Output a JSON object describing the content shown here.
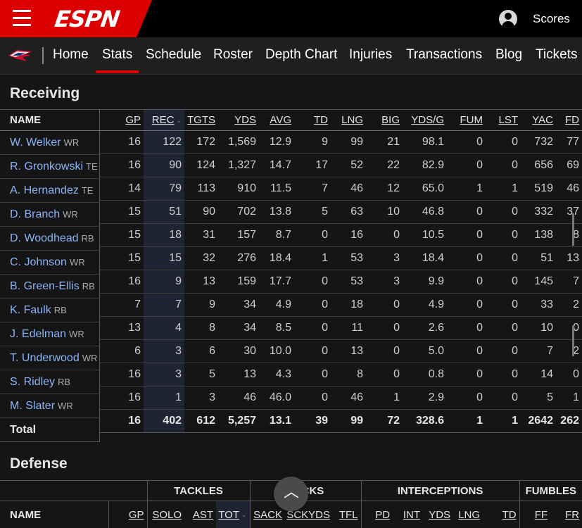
{
  "header": {
    "logo": "ESPN",
    "scores_label": "Scores",
    "menu_icon": "hamburger-icon",
    "user_icon": "user-icon"
  },
  "nav": {
    "items": [
      "Home",
      "Stats",
      "Schedule",
      "Roster",
      "Depth Chart",
      "Injuries",
      "Transactions",
      "Blog",
      "Tickets"
    ],
    "active": "Stats"
  },
  "receiving": {
    "title": "Receiving",
    "name_header": "NAME",
    "columns": [
      "GP",
      "REC",
      "TGTS",
      "YDS",
      "AVG",
      "TD",
      "LNG",
      "BIG",
      "YDS/G",
      "FUM",
      "LST",
      "YAC",
      "FD"
    ],
    "sort_column": "REC",
    "rows": [
      {
        "name": "W. Welker",
        "pos": "WR",
        "stats": [
          "16",
          "122",
          "172",
          "1,569",
          "12.9",
          "9",
          "99",
          "21",
          "98.1",
          "0",
          "0",
          "732",
          "77"
        ]
      },
      {
        "name": "R. Gronkowski",
        "pos": "TE",
        "stats": [
          "16",
          "90",
          "124",
          "1,327",
          "14.7",
          "17",
          "52",
          "22",
          "82.9",
          "0",
          "0",
          "656",
          "69"
        ]
      },
      {
        "name": "A. Hernandez",
        "pos": "TE",
        "stats": [
          "14",
          "79",
          "113",
          "910",
          "11.5",
          "7",
          "46",
          "12",
          "65.0",
          "1",
          "1",
          "519",
          "46"
        ]
      },
      {
        "name": "D. Branch",
        "pos": "WR",
        "stats": [
          "15",
          "51",
          "90",
          "702",
          "13.8",
          "5",
          "63",
          "10",
          "46.8",
          "0",
          "0",
          "332",
          "37"
        ]
      },
      {
        "name": "D. Woodhead",
        "pos": "RB",
        "stats": [
          "15",
          "18",
          "31",
          "157",
          "8.7",
          "0",
          "16",
          "0",
          "10.5",
          "0",
          "0",
          "138",
          "8"
        ]
      },
      {
        "name": "C. Johnson",
        "pos": "WR",
        "stats": [
          "15",
          "15",
          "32",
          "276",
          "18.4",
          "1",
          "53",
          "3",
          "18.4",
          "0",
          "0",
          "51",
          "13"
        ]
      },
      {
        "name": "B. Green-Ellis",
        "pos": "RB",
        "stats": [
          "16",
          "9",
          "13",
          "159",
          "17.7",
          "0",
          "53",
          "3",
          "9.9",
          "0",
          "0",
          "145",
          "7"
        ]
      },
      {
        "name": "K. Faulk",
        "pos": "RB",
        "stats": [
          "7",
          "7",
          "9",
          "34",
          "4.9",
          "0",
          "18",
          "0",
          "4.9",
          "0",
          "0",
          "33",
          "2"
        ]
      },
      {
        "name": "J. Edelman",
        "pos": "WR",
        "stats": [
          "13",
          "4",
          "8",
          "34",
          "8.5",
          "0",
          "11",
          "0",
          "2.6",
          "0",
          "0",
          "10",
          "0"
        ]
      },
      {
        "name": "T. Underwood",
        "pos": "WR",
        "stats": [
          "6",
          "3",
          "6",
          "30",
          "10.0",
          "0",
          "13",
          "0",
          "5.0",
          "0",
          "0",
          "7",
          "2"
        ]
      },
      {
        "name": "S. Ridley",
        "pos": "RB",
        "stats": [
          "16",
          "3",
          "5",
          "13",
          "4.3",
          "0",
          "8",
          "0",
          "0.8",
          "0",
          "0",
          "14",
          "0"
        ]
      },
      {
        "name": "M. Slater",
        "pos": "WR",
        "stats": [
          "16",
          "1",
          "3",
          "46",
          "46.0",
          "0",
          "46",
          "1",
          "2.9",
          "0",
          "0",
          "5",
          "1"
        ]
      }
    ],
    "total": {
      "label": "Total",
      "stats": [
        "16",
        "402",
        "612",
        "5,257",
        "13.1",
        "39",
        "99",
        "72",
        "328.6",
        "1",
        "1",
        "2642",
        "262"
      ]
    }
  },
  "defense": {
    "title": "Defense",
    "name_header": "NAME",
    "groups": [
      "TACKLES",
      "SACKS",
      "INTERCEPTIONS",
      "FUMBLES"
    ],
    "columns": [
      "GP",
      "SOLO",
      "AST",
      "TOT",
      "SACK",
      "SCKYDS",
      "TFL",
      "PD",
      "INT",
      "YDS",
      "LNG",
      "TD",
      "FF",
      "FR"
    ],
    "sort_column": "TOT"
  },
  "scroll_top_icon": "scroll-to-top-icon"
}
